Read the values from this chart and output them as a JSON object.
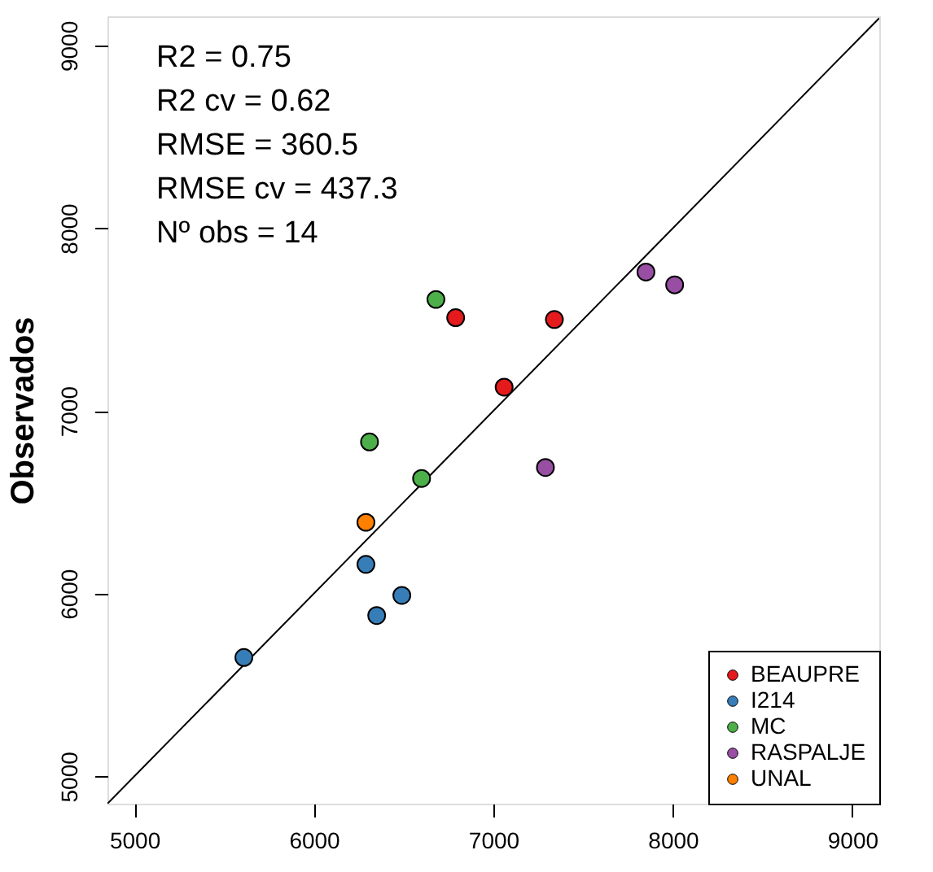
{
  "chart_data": {
    "type": "scatter",
    "ylabel": "Observados",
    "xlim": [
      4850,
      9150
    ],
    "ylim": [
      4850,
      9160
    ],
    "xticks": [
      5000,
      6000,
      7000,
      8000,
      9000
    ],
    "yticks": [
      5000,
      6000,
      7000,
      8000,
      9000
    ],
    "grid": false,
    "legend": "bottom right",
    "annotations": [
      "R2 =  0.75",
      "R2 cv =  0.62",
      "RMSE =  360.5",
      "RMSE cv =  437.3",
      "Nº obs = 14"
    ],
    "series": [
      {
        "type": "line",
        "color": "#000000",
        "line_style": "solid",
        "x": [
          4850,
          9150
        ],
        "values": [
          4850,
          9150
        ]
      },
      {
        "name": "BEAUPRE",
        "color": "#e41a1c",
        "marker": "circle",
        "x": [
          6790,
          7340,
          7060
        ],
        "values": [
          7510,
          7500,
          7130
        ]
      },
      {
        "name": "I214",
        "color": "#377eb8",
        "marker": "circle",
        "x": [
          6290,
          6490,
          6350,
          5610
        ],
        "values": [
          6160,
          5990,
          5880,
          5650
        ]
      },
      {
        "name": "MC",
        "color": "#4daf4a",
        "marker": "circle",
        "x": [
          6680,
          6310,
          6600
        ],
        "values": [
          7610,
          6830,
          6630
        ]
      },
      {
        "name": "RASPALJE",
        "color": "#984ea3",
        "marker": "circle",
        "x": [
          7850,
          8010,
          7290
        ],
        "values": [
          7760,
          7690,
          6690
        ]
      },
      {
        "name": "UNAL",
        "color": "#ff7f00",
        "marker": "circle",
        "x": [
          6290
        ],
        "values": [
          6390
        ]
      }
    ]
  }
}
